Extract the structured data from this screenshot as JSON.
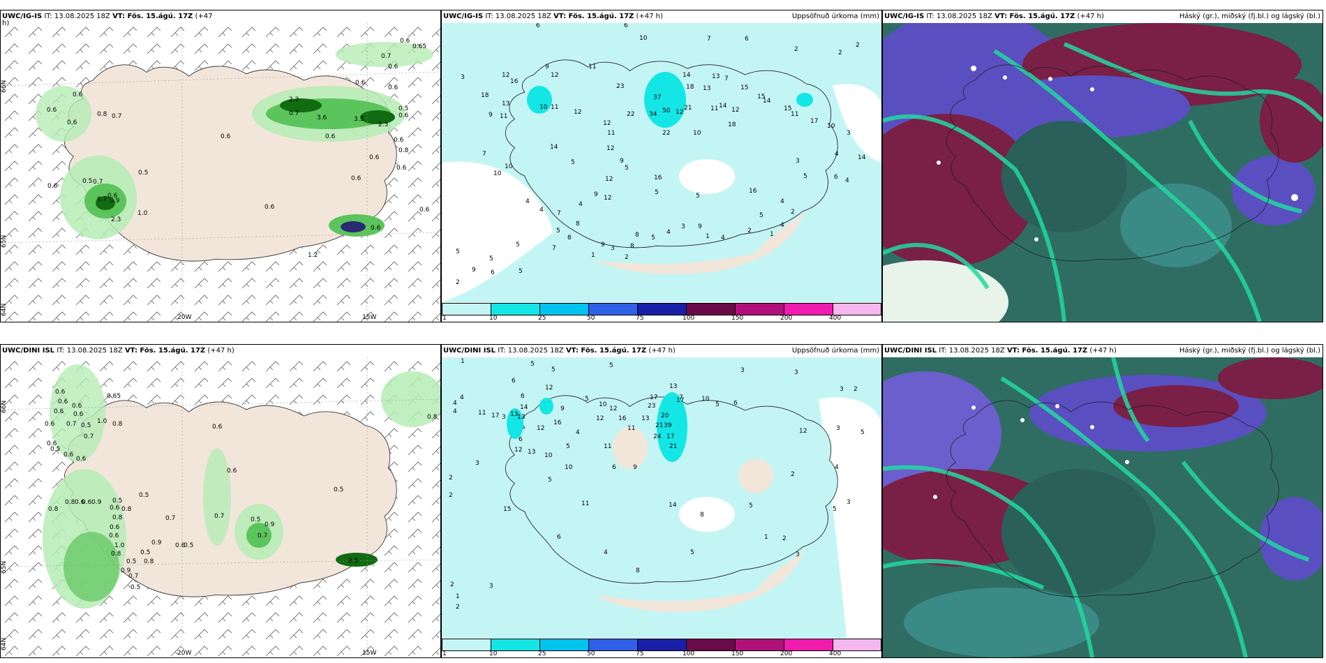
{
  "colors": {
    "land": "#f2e6da",
    "sea": "#ffffff",
    "wet": "#c4f5f5",
    "green_light": "#b5ecb5",
    "green_mid": "#5cc45c",
    "green_dark": "#116b11",
    "cloud_high": "#7a1f45",
    "cloud_mid": "#5a4fc0",
    "cloud_low": "#2f6d63",
    "cloud_teal": "#21d99f"
  },
  "row_top": {
    "panel_wind": {
      "title_model": "UWC/IG-IS",
      "title_it": "IT: 13.08.2025 18Z",
      "title_vt": "VT: Fös. 15.ágú. 17Z",
      "title_offset": "(+47",
      "title_wrap": "h)",
      "lat_labels": [
        "66N",
        "65N",
        "64N"
      ],
      "lon_labels": [
        "20W",
        "15W"
      ],
      "value_labels": [
        "0.6",
        "0.65",
        "0.7",
        "0.6",
        "0.6",
        "0.6",
        "0.8",
        "0.6",
        "0.7",
        "0.6",
        "0.6",
        "0.6",
        "2.3",
        "0.7",
        "3.6",
        "0.6",
        "3.3",
        "2.3",
        "0.5",
        "0.6",
        "0.8",
        "0.6",
        "0.6",
        "0.5",
        "0.6",
        "0.5",
        "0.7",
        "0.6",
        "0.7",
        "0.9",
        "1.0",
        "2.3",
        "0.6",
        "0.6",
        "1.2",
        "0.6",
        "0.6",
        "0.6"
      ]
    },
    "panel_precip": {
      "title_model": "UWC/IG-IS",
      "title_it": "IT: 13.08.2025 18Z",
      "title_vt": "VT: Fös. 15.ágú. 17Z",
      "title_offset": "(+47 h)",
      "title_right": "Uppsöfnuð úrkoma (mm)",
      "value_labels": [
        "6",
        "6",
        "10",
        "7",
        "6",
        "2",
        "2",
        "2",
        "3",
        "9",
        "11",
        "12",
        "12",
        "16",
        "23",
        "18",
        "37",
        "14",
        "13",
        "7",
        "18",
        "13",
        "15",
        "15",
        "13",
        "10",
        "11",
        "9",
        "11",
        "21",
        "11",
        "14",
        "12",
        "14",
        "15",
        "11",
        "22",
        "34",
        "50",
        "12",
        "18",
        "17",
        "12",
        "12",
        "22",
        "10",
        "11",
        "10",
        "3",
        "7",
        "14",
        "5",
        "12",
        "10",
        "4",
        "9",
        "5",
        "10",
        "16",
        "12",
        "16",
        "14",
        "6",
        "4",
        "3",
        "5",
        "5",
        "9",
        "4",
        "5",
        "4",
        "4",
        "12",
        "7",
        "8",
        "3",
        "9",
        "5",
        "4",
        "2",
        "8",
        "1",
        "5",
        "5",
        "8",
        "9",
        "8",
        "5",
        "4",
        "2",
        "4",
        "1",
        "5",
        "7",
        "4",
        "1",
        "3",
        "2",
        "5",
        "2",
        "6",
        "9",
        "5"
      ],
      "colorbar_ticks": [
        "1",
        "10",
        "25",
        "50",
        "75",
        "100",
        "150",
        "200",
        "400"
      ],
      "colorbar_colors": [
        "#c4f5f5",
        "#14e6e6",
        "#00c3ee",
        "#2e61e8",
        "#1a1fa8",
        "#6a0a48",
        "#b0107a",
        "#f01cb0",
        "#f4b7ee"
      ]
    },
    "panel_cloud": {
      "title_model": "UWC/IG-IS",
      "title_it": "IT: 13.08.2025 18Z",
      "title_vt": "VT: Fös. 15.ágú. 17Z",
      "title_offset": "(+47 h)",
      "title_right": "Háský (gr.), miðský (fj.bl.) og lágský (bl.)"
    }
  },
  "row_bottom": {
    "panel_wind": {
      "title_model": "UWC/DINI ISL",
      "title_it": "IT: 13.08.2025 18Z",
      "title_vt": "VT: Fös. 15.ágú. 17Z",
      "title_offset": "(+47 h)",
      "lat_labels": [
        "66N",
        "65N",
        "64N"
      ],
      "lon_labels": [
        "20W",
        "15W"
      ],
      "value_labels": [
        "0.6",
        "0.65",
        "0.6",
        "0.6",
        "0.6",
        "0.6",
        "0.6",
        "0.7",
        "0.5",
        "1.0",
        "0.8",
        "0.7",
        "0.6",
        "0.6",
        "0.6",
        "0.6",
        "0.5",
        "0.6",
        "0.8",
        "0.8",
        "0.6",
        "0.6",
        "0.9",
        "0.5",
        "0.5",
        "0.8",
        "0.6",
        "0.8",
        "0.7",
        "0.7",
        "0.6",
        "1.0",
        "0.6",
        "0.9",
        "0.6",
        "0.5",
        "0.8",
        "0.5",
        "0.9",
        "0.8",
        "0.5",
        "0.7",
        "0.5",
        "0.9",
        "0.7",
        "0.5",
        "2.5",
        "0.8",
        "0.5"
      ]
    },
    "panel_precip": {
      "title_model": "UWC/DINI ISL",
      "title_it": "IT: 13.08.2025 18Z",
      "title_vt": "VT: Fös. 15.ágú. 17Z",
      "title_offset": "(+47 h)",
      "title_right": "Uppsöfnuð úrkoma (mm)",
      "value_labels": [
        "1",
        "5",
        "5",
        "5",
        "3",
        "3",
        "4",
        "4",
        "4",
        "3",
        "2",
        "6",
        "6",
        "3",
        "12",
        "11",
        "17",
        "13",
        "14",
        "13",
        "9",
        "5",
        "10",
        "12",
        "23",
        "20",
        "7",
        "10",
        "5",
        "6",
        "11",
        "12",
        "17",
        "17",
        "13",
        "12",
        "16",
        "13",
        "16",
        "21",
        "39",
        "24",
        "17",
        "21",
        "4",
        "5",
        "6",
        "12",
        "3",
        "5",
        "12",
        "13",
        "10",
        "11",
        "10",
        "9",
        "6",
        "3",
        "4",
        "2",
        "2",
        "5",
        "15",
        "11",
        "14",
        "8",
        "5",
        "5",
        "3",
        "2",
        "1",
        "2",
        "3",
        "5",
        "8",
        "4",
        "6",
        "2",
        "1",
        "3",
        "2"
      ],
      "colorbar_ticks": [
        "1",
        "10",
        "25",
        "50",
        "75",
        "100",
        "150",
        "200",
        "400"
      ],
      "colorbar_colors": [
        "#c4f5f5",
        "#14e6e6",
        "#00c3ee",
        "#2e61e8",
        "#1a1fa8",
        "#6a0a48",
        "#b0107a",
        "#f01cb0",
        "#f4b7ee"
      ]
    },
    "panel_cloud": {
      "title_model": "UWC/DINI ISL",
      "title_it": "IT: 13.08.2025 18Z",
      "title_vt": "VT: Fös. 15.ágú. 17Z",
      "title_offset": "(+47 h)",
      "title_right": "Háský (gr.), miðský (fj.bl.) og lágský (bl.)"
    }
  }
}
